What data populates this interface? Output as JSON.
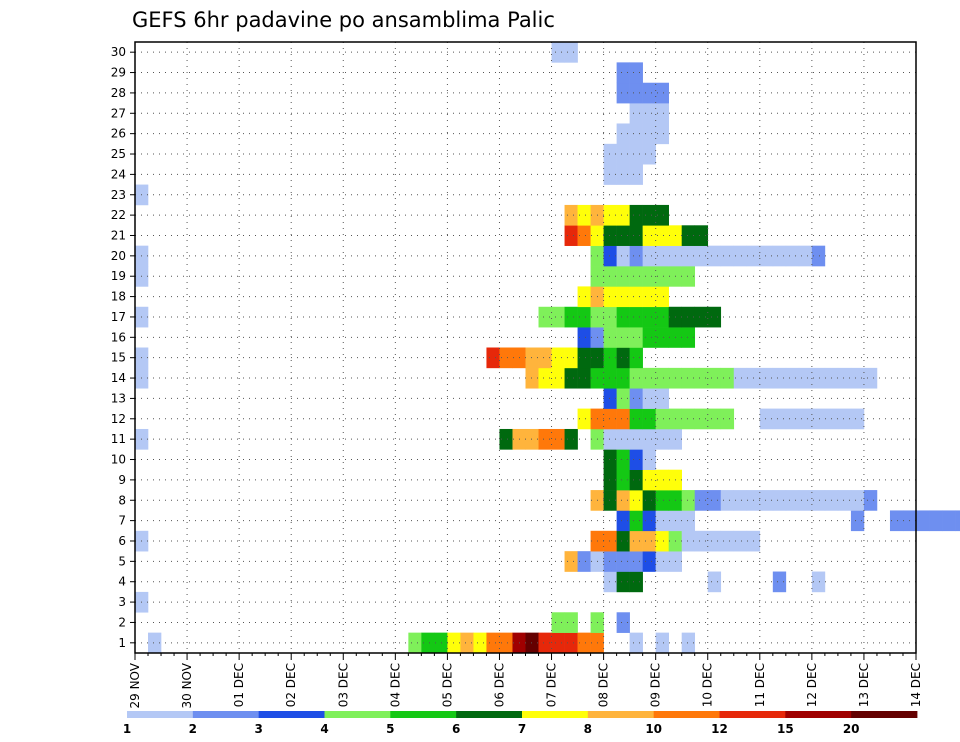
{
  "chart_data": {
    "type": "heatmap",
    "title": "GEFS 6hr padavine po ansamblima Palic",
    "xlabel": "",
    "ylabel": "",
    "x_tick_labels": [
      "29 NOV",
      "30 NOV",
      "01 DEC",
      "02 DEC",
      "03 DEC",
      "04 DEC",
      "05 DEC",
      "06 DEC",
      "07 DEC",
      "08 DEC",
      "09 DEC",
      "10 DEC",
      "11 DEC",
      "12 DEC",
      "13 DEC",
      "14 DEC"
    ],
    "y_tick_labels": [
      "1",
      "2",
      "3",
      "4",
      "5",
      "6",
      "7",
      "8",
      "9",
      "10",
      "11",
      "12",
      "13",
      "14",
      "15",
      "16",
      "17",
      "18",
      "19",
      "20",
      "21",
      "22",
      "23",
      "24",
      "25",
      "26",
      "27",
      "28",
      "29",
      "30"
    ],
    "x_range_days": [
      0,
      15
    ],
    "y_range": [
      0,
      30
    ],
    "steps_per_day": 4,
    "grid": true,
    "colorbar": {
      "levels": [
        "1",
        "2",
        "3",
        "4",
        "5",
        "6",
        "7",
        "8",
        "10",
        "12",
        "15",
        "20"
      ],
      "colors": [
        "#b4c8f5",
        "#6e8ff0",
        "#1e4ee6",
        "#7ff05a",
        "#14c814",
        "#00690f",
        "#ffff0a",
        "#ffb43c",
        "#ff780a",
        "#e6280a",
        "#a00000",
        "#640000"
      ]
    },
    "cells": [
      {
        "m": 0,
        "s": [
          [
            1,
            0
          ],
          [
            21,
            3
          ],
          [
            22,
            4
          ],
          [
            23,
            4
          ],
          [
            24,
            6
          ],
          [
            25,
            7
          ],
          [
            26,
            6
          ],
          [
            27,
            8
          ],
          [
            28,
            8
          ],
          [
            29,
            10
          ],
          [
            30,
            11
          ],
          [
            31,
            9
          ],
          [
            32,
            9
          ],
          [
            33,
            9
          ],
          [
            34,
            8
          ],
          [
            35,
            8
          ],
          [
            38,
            0
          ],
          [
            40,
            0
          ],
          [
            42,
            0
          ]
        ]
      },
      {
        "m": 1,
        "s": [
          [
            32,
            3
          ],
          [
            33,
            3
          ],
          [
            35,
            3
          ],
          [
            37,
            1
          ]
        ]
      },
      {
        "m": 2,
        "s": [
          [
            0,
            0
          ]
        ]
      },
      {
        "m": 3,
        "s": [
          [
            36,
            0
          ],
          [
            37,
            5
          ],
          [
            38,
            5
          ],
          [
            44,
            0
          ],
          [
            49,
            1
          ],
          [
            52,
            0
          ]
        ]
      },
      {
        "m": 4,
        "s": [
          [
            33,
            7
          ],
          [
            34,
            1
          ],
          [
            35,
            0
          ],
          [
            36,
            1
          ],
          [
            37,
            1
          ],
          [
            38,
            1
          ],
          [
            39,
            2
          ],
          [
            40,
            0
          ],
          [
            41,
            0
          ]
        ]
      },
      {
        "m": 5,
        "s": [
          [
            0,
            0
          ],
          [
            35,
            8
          ],
          [
            36,
            8
          ],
          [
            37,
            5
          ],
          [
            38,
            7
          ],
          [
            39,
            7
          ],
          [
            40,
            6
          ],
          [
            41,
            3
          ],
          [
            42,
            0
          ],
          [
            43,
            0
          ],
          [
            44,
            0
          ],
          [
            45,
            0
          ],
          [
            46,
            0
          ],
          [
            47,
            0
          ]
        ]
      },
      {
        "m": 6,
        "s": [
          [
            37,
            2
          ],
          [
            38,
            4
          ],
          [
            39,
            2
          ],
          [
            40,
            0
          ],
          [
            41,
            0
          ],
          [
            42,
            0
          ],
          [
            55,
            1
          ],
          [
            58,
            1
          ],
          [
            59,
            1
          ],
          [
            60,
            1
          ],
          [
            61,
            1
          ],
          [
            62,
            1
          ],
          [
            63,
            1
          ],
          [
            64,
            1
          ]
        ]
      },
      {
        "m": 7,
        "s": [
          [
            35,
            7
          ],
          [
            36,
            5
          ],
          [
            37,
            7
          ],
          [
            38,
            6
          ],
          [
            39,
            5
          ],
          [
            40,
            4
          ],
          [
            41,
            4
          ],
          [
            42,
            3
          ],
          [
            43,
            1
          ],
          [
            44,
            1
          ],
          [
            45,
            0
          ],
          [
            46,
            0
          ],
          [
            47,
            0
          ],
          [
            48,
            0
          ],
          [
            49,
            0
          ],
          [
            50,
            0
          ],
          [
            51,
            0
          ],
          [
            52,
            0
          ],
          [
            53,
            0
          ],
          [
            54,
            0
          ],
          [
            55,
            0
          ],
          [
            56,
            1
          ]
        ]
      },
      {
        "m": 8,
        "s": [
          [
            36,
            5
          ],
          [
            37,
            4
          ],
          [
            38,
            5
          ],
          [
            39,
            6
          ],
          [
            40,
            6
          ],
          [
            41,
            6
          ]
        ]
      },
      {
        "m": 9,
        "s": [
          [
            36,
            5
          ],
          [
            37,
            4
          ],
          [
            38,
            2
          ],
          [
            39,
            0
          ]
        ]
      },
      {
        "m": 10,
        "s": [
          [
            0,
            0
          ],
          [
            28,
            5
          ],
          [
            29,
            7
          ],
          [
            30,
            7
          ],
          [
            31,
            8
          ],
          [
            32,
            8
          ],
          [
            33,
            5
          ],
          [
            35,
            3
          ],
          [
            36,
            0
          ],
          [
            37,
            0
          ],
          [
            38,
            0
          ],
          [
            39,
            0
          ],
          [
            40,
            0
          ],
          [
            41,
            0
          ]
        ]
      },
      {
        "m": 11,
        "s": [
          [
            34,
            6
          ],
          [
            35,
            8
          ],
          [
            36,
            8
          ],
          [
            37,
            8
          ],
          [
            38,
            4
          ],
          [
            39,
            4
          ],
          [
            40,
            3
          ],
          [
            41,
            3
          ],
          [
            42,
            3
          ],
          [
            43,
            3
          ],
          [
            44,
            3
          ],
          [
            45,
            3
          ],
          [
            48,
            0
          ],
          [
            49,
            0
          ],
          [
            50,
            0
          ],
          [
            51,
            0
          ],
          [
            52,
            0
          ],
          [
            53,
            0
          ],
          [
            54,
            0
          ],
          [
            55,
            0
          ]
        ]
      },
      {
        "m": 12,
        "s": [
          [
            36,
            2
          ],
          [
            37,
            3
          ],
          [
            38,
            1
          ],
          [
            39,
            0
          ],
          [
            40,
            0
          ]
        ]
      },
      {
        "m": 13,
        "s": [
          [
            0,
            0
          ],
          [
            30,
            7
          ],
          [
            31,
            6
          ],
          [
            32,
            6
          ],
          [
            33,
            5
          ],
          [
            34,
            5
          ],
          [
            35,
            4
          ],
          [
            36,
            4
          ],
          [
            37,
            4
          ],
          [
            38,
            3
          ],
          [
            39,
            3
          ],
          [
            40,
            3
          ],
          [
            41,
            3
          ],
          [
            42,
            3
          ],
          [
            43,
            3
          ],
          [
            44,
            3
          ],
          [
            45,
            3
          ],
          [
            46,
            0
          ],
          [
            47,
            0
          ],
          [
            48,
            0
          ],
          [
            49,
            0
          ],
          [
            50,
            0
          ],
          [
            51,
            0
          ],
          [
            52,
            0
          ],
          [
            53,
            0
          ],
          [
            54,
            0
          ],
          [
            55,
            0
          ],
          [
            56,
            0
          ]
        ]
      },
      {
        "m": 14,
        "s": [
          [
            0,
            0
          ],
          [
            27,
            9
          ],
          [
            28,
            8
          ],
          [
            29,
            8
          ],
          [
            30,
            7
          ],
          [
            31,
            7
          ],
          [
            32,
            6
          ],
          [
            33,
            6
          ],
          [
            34,
            5
          ],
          [
            35,
            5
          ],
          [
            36,
            4
          ],
          [
            37,
            5
          ],
          [
            38,
            4
          ]
        ]
      },
      {
        "m": 15,
        "s": [
          [
            34,
            2
          ],
          [
            35,
            1
          ],
          [
            36,
            3
          ],
          [
            37,
            3
          ],
          [
            38,
            3
          ],
          [
            39,
            4
          ],
          [
            40,
            4
          ],
          [
            41,
            4
          ],
          [
            42,
            4
          ]
        ]
      },
      {
        "m": 16,
        "s": [
          [
            0,
            0
          ],
          [
            31,
            3
          ],
          [
            32,
            3
          ],
          [
            33,
            4
          ],
          [
            34,
            4
          ],
          [
            35,
            3
          ],
          [
            36,
            3
          ],
          [
            37,
            4
          ],
          [
            38,
            4
          ],
          [
            39,
            4
          ],
          [
            40,
            4
          ],
          [
            41,
            5
          ],
          [
            42,
            5
          ],
          [
            43,
            5
          ],
          [
            44,
            5
          ]
        ]
      },
      {
        "m": 17,
        "s": [
          [
            34,
            6
          ],
          [
            35,
            7
          ],
          [
            36,
            6
          ],
          [
            37,
            6
          ],
          [
            38,
            6
          ],
          [
            39,
            6
          ],
          [
            40,
            6
          ]
        ]
      },
      {
        "m": 18,
        "s": [
          [
            0,
            0
          ],
          [
            35,
            3
          ],
          [
            36,
            3
          ],
          [
            37,
            3
          ],
          [
            38,
            3
          ],
          [
            39,
            3
          ],
          [
            40,
            3
          ],
          [
            41,
            3
          ],
          [
            42,
            3
          ]
        ]
      },
      {
        "m": 19,
        "s": [
          [
            0,
            0
          ],
          [
            35,
            3
          ],
          [
            36,
            2
          ],
          [
            37,
            0
          ],
          [
            38,
            1
          ],
          [
            39,
            0
          ],
          [
            40,
            0
          ],
          [
            41,
            0
          ],
          [
            42,
            0
          ],
          [
            43,
            0
          ],
          [
            44,
            0
          ],
          [
            45,
            0
          ],
          [
            46,
            0
          ],
          [
            47,
            0
          ],
          [
            48,
            0
          ],
          [
            49,
            0
          ],
          [
            50,
            0
          ],
          [
            51,
            0
          ],
          [
            52,
            1
          ]
        ]
      },
      {
        "m": 20,
        "s": [
          [
            33,
            9
          ],
          [
            34,
            8
          ],
          [
            35,
            6
          ],
          [
            36,
            5
          ],
          [
            37,
            5
          ],
          [
            38,
            5
          ],
          [
            39,
            6
          ],
          [
            40,
            6
          ],
          [
            41,
            6
          ],
          [
            42,
            5
          ],
          [
            43,
            5
          ]
        ]
      },
      {
        "m": 21,
        "s": [
          [
            33,
            7
          ],
          [
            34,
            6
          ],
          [
            35,
            7
          ],
          [
            36,
            6
          ],
          [
            37,
            6
          ],
          [
            38,
            5
          ],
          [
            39,
            5
          ],
          [
            40,
            5
          ]
        ]
      },
      {
        "m": 22,
        "s": [
          [
            0,
            0
          ]
        ]
      },
      {
        "m": 23,
        "s": [
          [
            36,
            0
          ],
          [
            37,
            0
          ],
          [
            38,
            0
          ]
        ]
      },
      {
        "m": 24,
        "s": [
          [
            36,
            0
          ],
          [
            37,
            0
          ],
          [
            38,
            0
          ],
          [
            39,
            0
          ]
        ]
      },
      {
        "m": 25,
        "s": [
          [
            37,
            0
          ],
          [
            38,
            0
          ],
          [
            39,
            0
          ],
          [
            40,
            0
          ]
        ]
      },
      {
        "m": 26,
        "s": [
          [
            38,
            0
          ],
          [
            39,
            0
          ],
          [
            40,
            0
          ]
        ]
      },
      {
        "m": 27,
        "s": [
          [
            37,
            1
          ],
          [
            38,
            1
          ],
          [
            39,
            1
          ],
          [
            40,
            1
          ]
        ]
      },
      {
        "m": 28,
        "s": [
          [
            37,
            1
          ],
          [
            38,
            1
          ]
        ]
      },
      {
        "m": 29,
        "s": [
          [
            32,
            0
          ],
          [
            33,
            0
          ]
        ]
      }
    ]
  }
}
